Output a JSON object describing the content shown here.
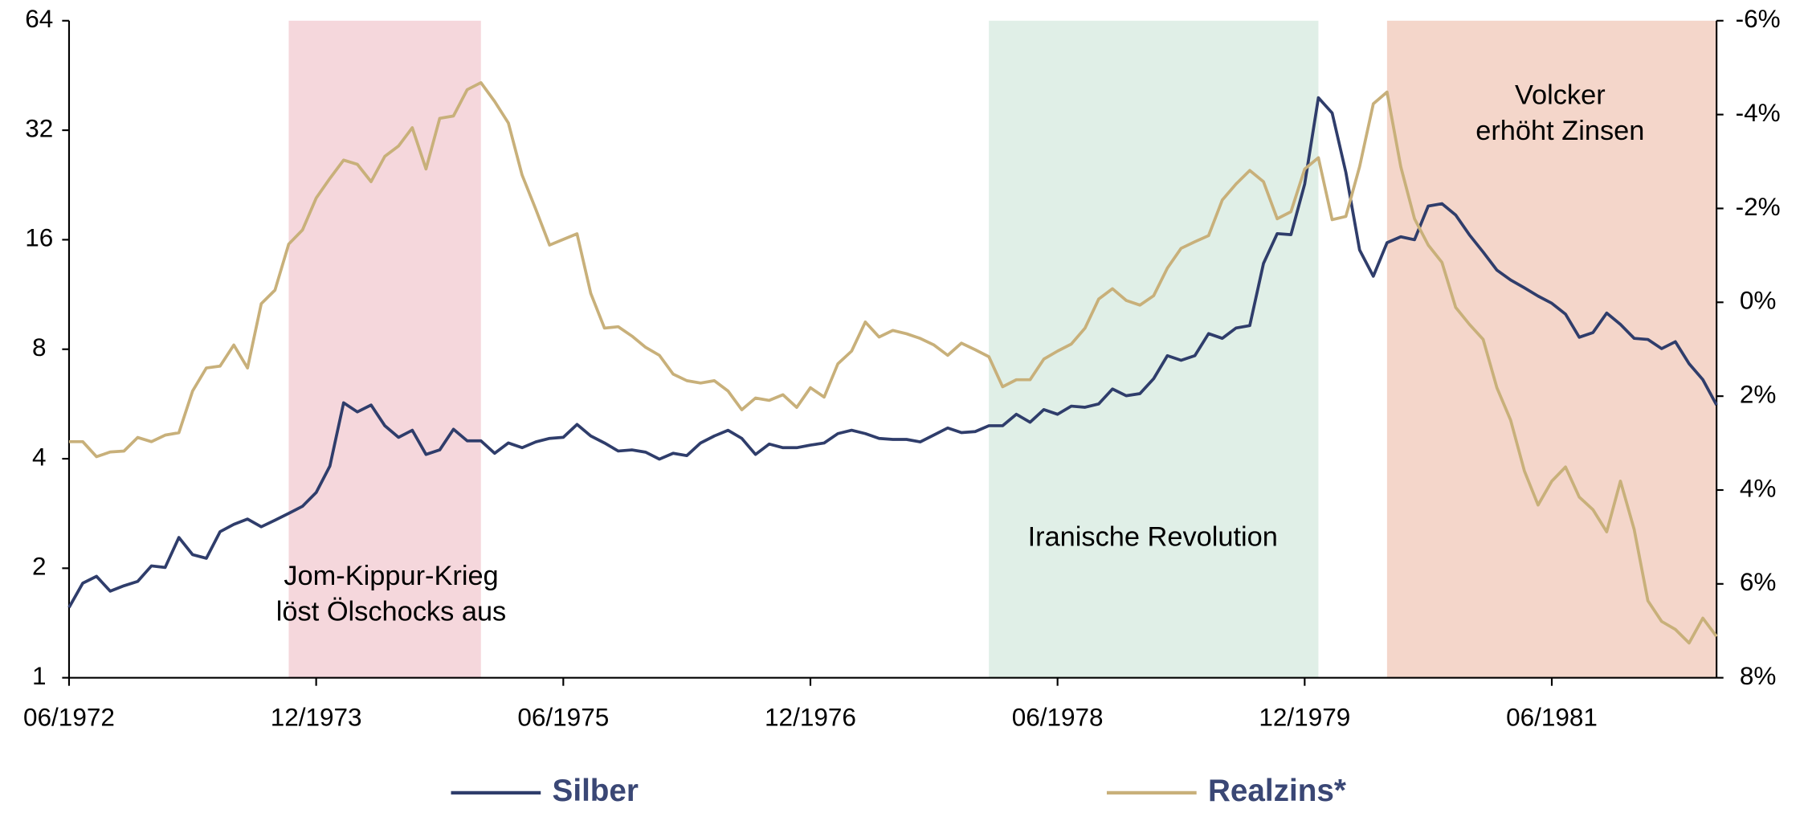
{
  "chart_data": {
    "type": "line",
    "x": [
      "06/1972",
      "07/1972",
      "08/1972",
      "09/1972",
      "10/1972",
      "11/1972",
      "12/1972",
      "01/1973",
      "02/1973",
      "03/1973",
      "04/1973",
      "05/1973",
      "06/1973",
      "07/1973",
      "08/1973",
      "09/1973",
      "10/1973",
      "11/1973",
      "12/1973",
      "01/1974",
      "02/1974",
      "03/1974",
      "04/1974",
      "05/1974",
      "06/1974",
      "07/1974",
      "08/1974",
      "09/1974",
      "10/1974",
      "11/1974",
      "12/1974",
      "01/1975",
      "02/1975",
      "03/1975",
      "04/1975",
      "05/1975",
      "06/1975",
      "07/1975",
      "08/1975",
      "09/1975",
      "10/1975",
      "11/1975",
      "12/1975",
      "01/1976",
      "02/1976",
      "03/1976",
      "04/1976",
      "05/1976",
      "06/1976",
      "07/1976",
      "08/1976",
      "09/1976",
      "10/1976",
      "11/1976",
      "12/1976",
      "01/1977",
      "02/1977",
      "03/1977",
      "04/1977",
      "05/1977",
      "06/1977",
      "07/1977",
      "08/1977",
      "09/1977",
      "10/1977",
      "11/1977",
      "12/1977",
      "01/1978",
      "02/1978",
      "03/1978",
      "04/1978",
      "05/1978",
      "06/1978",
      "07/1978",
      "08/1978",
      "09/1978",
      "10/1978",
      "11/1978",
      "12/1978",
      "01/1979",
      "02/1979",
      "03/1979",
      "04/1979",
      "05/1979",
      "06/1979",
      "07/1979",
      "08/1979",
      "09/1979",
      "10/1979",
      "11/1979",
      "12/1979",
      "01/1980",
      "02/1980",
      "03/1980",
      "04/1980",
      "05/1980",
      "06/1980",
      "07/1980",
      "08/1980",
      "09/1980",
      "10/1980",
      "11/1980",
      "12/1980",
      "01/1981",
      "02/1981",
      "03/1981",
      "04/1981",
      "05/1981",
      "06/1981",
      "07/1981",
      "08/1981",
      "09/1981",
      "10/1981",
      "11/1981",
      "12/1981",
      "01/1982",
      "02/1982",
      "03/1982",
      "04/1982",
      "05/1982",
      "06/1982"
    ],
    "series": [
      {
        "name": "Silber",
        "color": "#2f3d6b",
        "axis": "y",
        "values": [
          1.56,
          1.82,
          1.9,
          1.73,
          1.79,
          1.84,
          2.03,
          2.01,
          2.43,
          2.18,
          2.13,
          2.52,
          2.64,
          2.73,
          2.6,
          2.71,
          2.83,
          2.96,
          3.23,
          3.82,
          5.7,
          5.38,
          5.62,
          4.93,
          4.58,
          4.79,
          4.11,
          4.23,
          4.82,
          4.48,
          4.48,
          4.14,
          4.42,
          4.29,
          4.45,
          4.55,
          4.58,
          4.97,
          4.62,
          4.42,
          4.2,
          4.23,
          4.17,
          3.99,
          4.14,
          4.08,
          4.42,
          4.62,
          4.79,
          4.55,
          4.11,
          4.39,
          4.29,
          4.29,
          4.36,
          4.42,
          4.69,
          4.79,
          4.69,
          4.55,
          4.52,
          4.52,
          4.45,
          4.65,
          4.86,
          4.72,
          4.75,
          4.93,
          4.93,
          5.3,
          5.04,
          5.46,
          5.3,
          5.58,
          5.54,
          5.66,
          6.22,
          5.96,
          6.04,
          6.64,
          7.68,
          7.46,
          7.68,
          8.83,
          8.57,
          9.15,
          9.29,
          13.77,
          16.63,
          16.52,
          22.75,
          39.3,
          35.7,
          24.5,
          15.0,
          12.7,
          15.7,
          16.3,
          16.0,
          19.8,
          20.1,
          18.7,
          16.5,
          14.8,
          13.2,
          12.4,
          11.8,
          11.2,
          10.7,
          9.99,
          8.63,
          8.89,
          10.06,
          9.36,
          8.57,
          8.51,
          8.03,
          8.39,
          7.3,
          6.6,
          5.62
        ]
      },
      {
        "name": "Realzins*",
        "color": "#c8b07a",
        "axis": "y2",
        "values": [
          2.97,
          2.97,
          3.29,
          3.19,
          3.17,
          2.88,
          2.97,
          2.83,
          2.78,
          1.89,
          1.4,
          1.36,
          0.91,
          1.4,
          0.03,
          -0.26,
          -1.24,
          -1.54,
          -2.22,
          -2.64,
          -3.03,
          -2.94,
          -2.57,
          -3.11,
          -3.33,
          -3.72,
          -2.84,
          -3.92,
          -3.97,
          -4.53,
          -4.68,
          -4.28,
          -3.82,
          -2.71,
          -1.98,
          -1.22,
          -1.34,
          -1.46,
          -0.19,
          0.55,
          0.52,
          0.72,
          0.96,
          1.13,
          1.53,
          1.67,
          1.72,
          1.67,
          1.89,
          2.29,
          2.04,
          2.09,
          1.97,
          2.24,
          1.82,
          2.02,
          1.31,
          1.04,
          0.42,
          0.74,
          0.6,
          0.67,
          0.77,
          0.91,
          1.13,
          0.87,
          1.01,
          1.16,
          1.8,
          1.65,
          1.65,
          1.21,
          1.04,
          0.89,
          0.55,
          -0.07,
          -0.29,
          -0.04,
          0.06,
          -0.14,
          -0.73,
          -1.15,
          -1.29,
          -1.42,
          -2.18,
          -2.52,
          -2.81,
          -2.57,
          -1.78,
          -1.93,
          -2.84,
          -3.08,
          -1.76,
          -1.83,
          -2.89,
          -4.23,
          -4.48,
          -2.89,
          -1.78,
          -1.22,
          -0.85,
          0.11,
          0.47,
          0.79,
          1.82,
          2.51,
          3.59,
          4.32,
          3.81,
          3.51,
          4.15,
          4.42,
          4.89,
          3.81,
          4.84,
          6.36,
          6.8,
          6.97,
          7.26,
          6.73,
          7.12
        ]
      }
    ],
    "xticks": [
      "06/1972",
      "12/1973",
      "06/1975",
      "12/1976",
      "06/1978",
      "12/1979",
      "06/1981"
    ],
    "ylim": [
      1,
      64
    ],
    "log_scale": true,
    "log_base": 2,
    "yticks": [
      1,
      2,
      4,
      8,
      16,
      32,
      64
    ],
    "y2lim": [
      -6,
      8
    ],
    "y2_reversed": true,
    "y2ticks": [
      {
        "value": -6,
        "label": "-6%"
      },
      {
        "value": -4,
        "label": "-4%"
      },
      {
        "value": -2,
        "label": "-2%"
      },
      {
        "value": 0,
        "label": "0%"
      },
      {
        "value": 2,
        "label": "2%"
      },
      {
        "value": 4,
        "label": "4%"
      },
      {
        "value": 6,
        "label": "6%"
      },
      {
        "value": 8,
        "label": "8%"
      }
    ],
    "legend": "bottom",
    "shaded_regions": [
      {
        "start": "10/1973",
        "end": "12/1974",
        "color": "#f5d7dc",
        "label": [
          "Jom-Kippur-Krieg",
          "löst Ölschocks aus"
        ]
      },
      {
        "start": "01/1978",
        "end": "01/1980",
        "color": "#e0efe7",
        "label": [
          "Iranische Revolution"
        ]
      },
      {
        "start": "06/1980",
        "end": "06/1982",
        "color": "#f4d6ca",
        "label": [
          "Volcker",
          "erhöht Zinsen"
        ]
      }
    ]
  }
}
